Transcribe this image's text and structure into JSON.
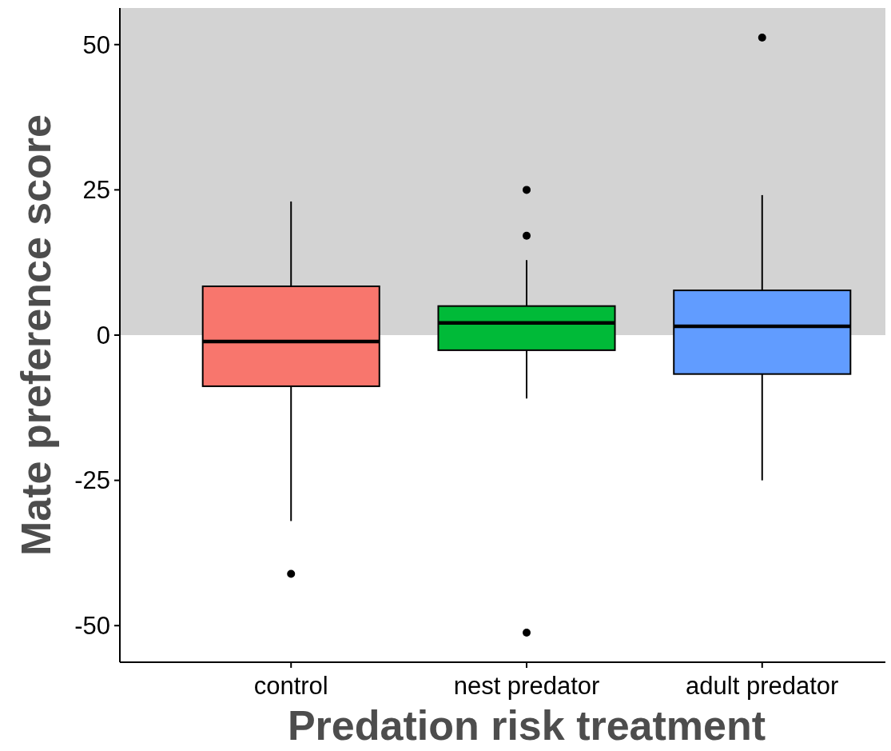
{
  "chart_data": {
    "type": "box",
    "xlabel": "Predation risk treatment",
    "ylabel": "Mate preference score",
    "categories": [
      "control",
      "nest predator",
      "adult predator"
    ],
    "colors": [
      "#f8766d",
      "#00ba38",
      "#619cff"
    ],
    "boxes": [
      {
        "low": -32,
        "q1": -8.8,
        "median": -1.1,
        "q3": 8.4,
        "high": 23,
        "outliers": [
          -41.1
        ]
      },
      {
        "low": -10.9,
        "q1": -2.6,
        "median": 2.1,
        "q3": 5,
        "high": 12.9,
        "outliers": [
          25,
          17.1,
          -51.2
        ]
      },
      {
        "low": -25,
        "q1": -6.7,
        "median": 1.5,
        "q3": 7.7,
        "high": 24.1,
        "outliers": [
          51.2
        ]
      }
    ],
    "ylim": [
      -56.3,
      56.3
    ],
    "yticks": [
      -50,
      -25,
      0,
      25,
      50
    ],
    "bands": [
      {
        "axis": "y",
        "from": 0,
        "to": 56.3,
        "color": "#d3d3d3"
      }
    ]
  }
}
